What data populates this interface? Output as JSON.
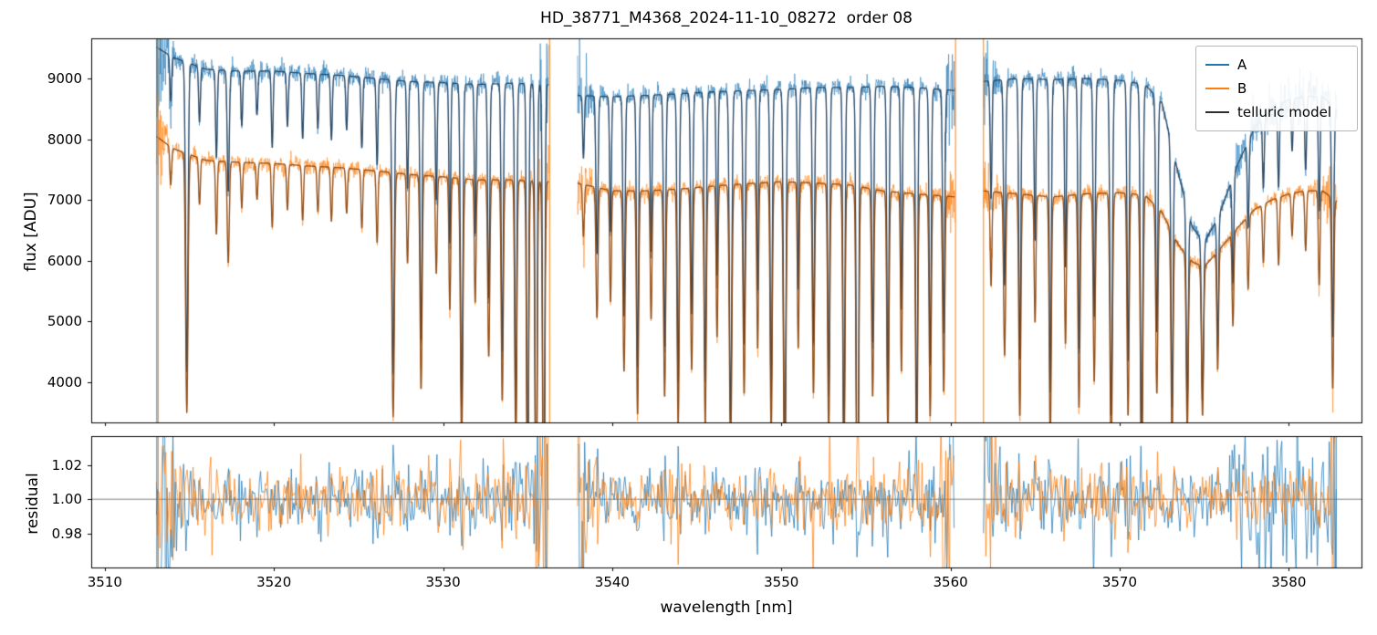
{
  "chart_data": {
    "type": "line",
    "title": "HD_38771_M4368_2024-11-10_08272  order 08",
    "xlabel": "wavelength [nm]",
    "xlim": [
      3509.2,
      3584.3
    ],
    "xticks": {
      "values": [
        3510,
        3520,
        3530,
        3540,
        3550,
        3560,
        3570,
        3580
      ],
      "labels": [
        "3510",
        "3520",
        "3530",
        "3540",
        "3550",
        "3560",
        "3570",
        "3580"
      ]
    },
    "flux_panel": {
      "ylabel": "flux [ADU]",
      "ylim": [
        3340,
        9660
      ],
      "yticks": {
        "values": [
          4000,
          5000,
          6000,
          7000,
          8000,
          9000
        ],
        "labels": [
          "4000",
          "5000",
          "6000",
          "7000",
          "8000",
          "9000"
        ]
      }
    },
    "residual_panel": {
      "ylabel": "residual",
      "ylim": [
        0.96,
        1.037
      ],
      "yticks": {
        "values": [
          0.98,
          1.0,
          1.02
        ],
        "labels": [
          "0.98",
          "1.00",
          "1.02"
        ]
      },
      "reference_line": 1.0,
      "reference_color": "#808080"
    },
    "legend": {
      "items": [
        {
          "label": "A",
          "color": "#1f77b4"
        },
        {
          "label": "B",
          "color": "#ff7f0e"
        },
        {
          "label": "telluric model",
          "color": "#2e2e2e"
        }
      ]
    },
    "segments": [
      [
        3513.05,
        3536.25
      ],
      [
        3537.95,
        3560.25
      ],
      [
        3561.95,
        3582.85
      ]
    ],
    "series": {
      "A": {
        "color": "#1f77b4",
        "model_overlay_color": "#27425e",
        "continuum": [
          [
            3512.8,
            9560
          ],
          [
            3514.0,
            9350
          ],
          [
            3516,
            9150
          ],
          [
            3518,
            9120
          ],
          [
            3520,
            9120
          ],
          [
            3522,
            9080
          ],
          [
            3524,
            9050
          ],
          [
            3526,
            9000
          ],
          [
            3528,
            8950
          ],
          [
            3530,
            8930
          ],
          [
            3532,
            8900
          ],
          [
            3534,
            8920
          ],
          [
            3536.3,
            8900
          ],
          [
            3537.9,
            8720
          ],
          [
            3540,
            8700
          ],
          [
            3542,
            8720
          ],
          [
            3544,
            8750
          ],
          [
            3546,
            8780
          ],
          [
            3548,
            8800
          ],
          [
            3550,
            8820
          ],
          [
            3552,
            8850
          ],
          [
            3554,
            8850
          ],
          [
            3556,
            8870
          ],
          [
            3558,
            8850
          ],
          [
            3560.3,
            8800
          ],
          [
            3561.9,
            8950
          ],
          [
            3564,
            9000
          ],
          [
            3566,
            8980
          ],
          [
            3568,
            9000
          ],
          [
            3570,
            8970
          ],
          [
            3571.5,
            8900
          ],
          [
            3572.5,
            8600
          ],
          [
            3573.5,
            7400
          ],
          [
            3574.3,
            6550
          ],
          [
            3575.0,
            6300
          ],
          [
            3575.8,
            6700
          ],
          [
            3577,
            7600
          ],
          [
            3578,
            8200
          ],
          [
            3579,
            8500
          ],
          [
            3580,
            8650
          ],
          [
            3581,
            8700
          ],
          [
            3582,
            8700
          ],
          [
            3583,
            8450
          ]
        ]
      },
      "B": {
        "color": "#ff7f0e",
        "model_overlay_color": "#8a4a15",
        "continuum": [
          [
            3512.8,
            8100
          ],
          [
            3514.0,
            7850
          ],
          [
            3516,
            7650
          ],
          [
            3518,
            7620
          ],
          [
            3520,
            7600
          ],
          [
            3522,
            7560
          ],
          [
            3524,
            7530
          ],
          [
            3526,
            7480
          ],
          [
            3528,
            7420
          ],
          [
            3530,
            7380
          ],
          [
            3532,
            7330
          ],
          [
            3534,
            7330
          ],
          [
            3536.3,
            7300
          ],
          [
            3537.9,
            7280
          ],
          [
            3540,
            7150
          ],
          [
            3542,
            7150
          ],
          [
            3544,
            7180
          ],
          [
            3546,
            7230
          ],
          [
            3548,
            7270
          ],
          [
            3550,
            7300
          ],
          [
            3552,
            7280
          ],
          [
            3554,
            7250
          ],
          [
            3556,
            7150
          ],
          [
            3558,
            7100
          ],
          [
            3560.3,
            7050
          ],
          [
            3561.9,
            7150
          ],
          [
            3564,
            7100
          ],
          [
            3566,
            7050
          ],
          [
            3568,
            7100
          ],
          [
            3570,
            7120
          ],
          [
            3571.5,
            7080
          ],
          [
            3572.5,
            6800
          ],
          [
            3573.5,
            6250
          ],
          [
            3574.3,
            5980
          ],
          [
            3575.0,
            5900
          ],
          [
            3575.8,
            6150
          ],
          [
            3577,
            6550
          ],
          [
            3578,
            6850
          ],
          [
            3579,
            7000
          ],
          [
            3580,
            7100
          ],
          [
            3581,
            7150
          ],
          [
            3582,
            7150
          ],
          [
            3583,
            6950
          ]
        ]
      }
    },
    "telluric_lines": [
      [
        3513.9,
        0.08,
        0.05
      ],
      [
        3514.85,
        0.55,
        0.07
      ],
      [
        3515.6,
        0.1,
        0.05
      ],
      [
        3516.6,
        0.16,
        0.05
      ],
      [
        3517.3,
        0.22,
        0.06
      ],
      [
        3518.1,
        0.1,
        0.05
      ],
      [
        3519.0,
        0.08,
        0.05
      ],
      [
        3519.9,
        0.14,
        0.05
      ],
      [
        3520.8,
        0.1,
        0.05
      ],
      [
        3521.7,
        0.12,
        0.05
      ],
      [
        3522.6,
        0.1,
        0.05
      ],
      [
        3523.4,
        0.12,
        0.05
      ],
      [
        3524.3,
        0.1,
        0.05
      ],
      [
        3525.2,
        0.13,
        0.05
      ],
      [
        3526.1,
        0.16,
        0.05
      ],
      [
        3527.05,
        0.54,
        0.07
      ],
      [
        3527.9,
        0.2,
        0.05
      ],
      [
        3528.7,
        0.48,
        0.06
      ],
      [
        3529.6,
        0.22,
        0.05
      ],
      [
        3530.4,
        0.3,
        0.05
      ],
      [
        3531.1,
        0.6,
        0.07
      ],
      [
        3531.9,
        0.28,
        0.05
      ],
      [
        3532.7,
        0.4,
        0.06
      ],
      [
        3533.5,
        0.5,
        0.06
      ],
      [
        3534.3,
        0.62,
        0.06
      ],
      [
        3535.0,
        0.78,
        0.06
      ],
      [
        3535.5,
        0.88,
        0.06
      ],
      [
        3535.95,
        0.93,
        0.06
      ],
      [
        3538.3,
        0.12,
        0.05
      ],
      [
        3539.1,
        0.3,
        0.06
      ],
      [
        3539.9,
        0.26,
        0.05
      ],
      [
        3540.7,
        0.42,
        0.06
      ],
      [
        3541.5,
        0.52,
        0.06
      ],
      [
        3542.3,
        0.3,
        0.05
      ],
      [
        3543.1,
        0.48,
        0.06
      ],
      [
        3543.9,
        0.55,
        0.06
      ],
      [
        3544.7,
        0.42,
        0.06
      ],
      [
        3545.5,
        0.55,
        0.06
      ],
      [
        3546.2,
        0.35,
        0.05
      ],
      [
        3547.0,
        0.62,
        0.07
      ],
      [
        3547.8,
        0.48,
        0.06
      ],
      [
        3548.6,
        0.38,
        0.05
      ],
      [
        3549.4,
        0.58,
        0.06
      ],
      [
        3550.2,
        0.72,
        0.07
      ],
      [
        3551.0,
        0.38,
        0.05
      ],
      [
        3551.9,
        0.48,
        0.06
      ],
      [
        3552.8,
        0.58,
        0.06
      ],
      [
        3553.7,
        0.68,
        0.06
      ],
      [
        3554.5,
        0.88,
        0.07
      ],
      [
        3555.4,
        0.48,
        0.06
      ],
      [
        3556.3,
        0.58,
        0.06
      ],
      [
        3557.1,
        0.42,
        0.05
      ],
      [
        3558.0,
        0.66,
        0.06
      ],
      [
        3558.8,
        0.52,
        0.06
      ],
      [
        3559.6,
        0.46,
        0.06
      ],
      [
        3562.4,
        0.22,
        0.05
      ],
      [
        3563.2,
        0.38,
        0.06
      ],
      [
        3564.1,
        0.52,
        0.06
      ],
      [
        3565.0,
        0.3,
        0.05
      ],
      [
        3565.9,
        0.58,
        0.06
      ],
      [
        3566.8,
        0.35,
        0.05
      ],
      [
        3567.6,
        0.5,
        0.06
      ],
      [
        3568.5,
        0.44,
        0.06
      ],
      [
        3569.5,
        0.62,
        0.07
      ],
      [
        3570.5,
        0.52,
        0.06
      ],
      [
        3571.3,
        0.68,
        0.07
      ],
      [
        3572.2,
        0.45,
        0.06
      ],
      [
        3573.1,
        0.55,
        0.06
      ],
      [
        3574.0,
        0.48,
        0.06
      ],
      [
        3574.9,
        0.42,
        0.06
      ],
      [
        3575.8,
        0.32,
        0.05
      ],
      [
        3576.7,
        0.24,
        0.05
      ],
      [
        3577.6,
        0.18,
        0.05
      ],
      [
        3578.5,
        0.14,
        0.05
      ],
      [
        3579.4,
        0.16,
        0.05
      ],
      [
        3580.2,
        0.1,
        0.05
      ],
      [
        3581.0,
        0.14,
        0.05
      ],
      [
        3581.8,
        0.22,
        0.05
      ],
      [
        3582.6,
        0.45,
        0.06
      ]
    ],
    "edge_spikes_top": [
      {
        "x": 3513.08,
        "color": "#1f77b4"
      },
      {
        "x": 3513.16,
        "color": "#ff7f0e"
      },
      {
        "x": 3536.3,
        "color": "#ff7f0e"
      },
      {
        "x": 3560.3,
        "color": "#ff7f0e"
      },
      {
        "x": 3561.95,
        "color": "#ff7f0e"
      }
    ],
    "edge_spikes_bottom": [
      {
        "x": 3513.08,
        "color": "#1f77b4"
      },
      {
        "x": 3513.16,
        "color": "#ff7f0e"
      },
      {
        "x": 3582.8,
        "color": "#1f77b4"
      }
    ],
    "noise": {
      "base_sigma": 0.009,
      "line_boost": 2.2,
      "edge_boost": 3.5,
      "edge_width_nm": 0.5,
      "a_right_extra": {
        "from": 3576.5,
        "sigma": 0.024
      }
    }
  }
}
